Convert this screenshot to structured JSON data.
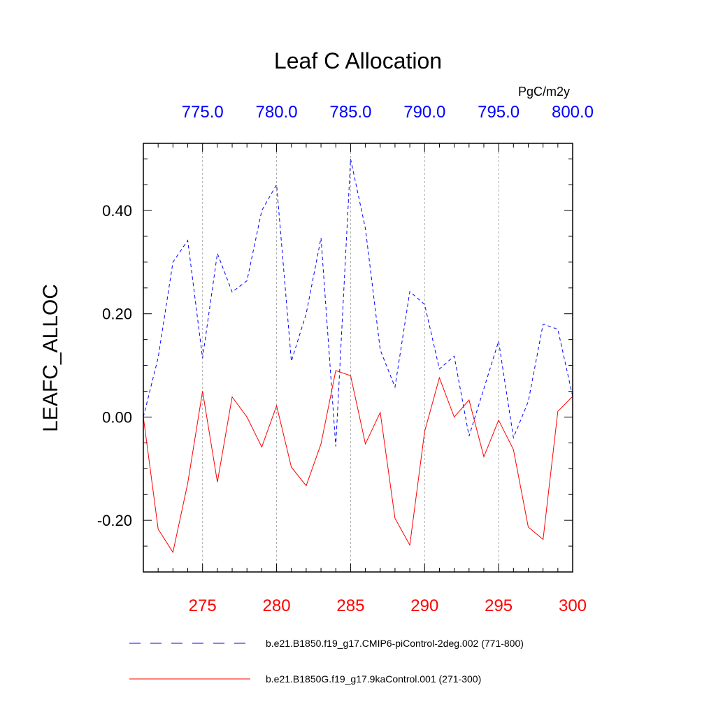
{
  "chart_data": {
    "type": "line",
    "title": "Leaf C Allocation",
    "ylabel": "LEAFC_ALLOC",
    "units": "PgC/m2y",
    "ylim": [
      -0.3,
      0.53
    ],
    "yticks": [
      -0.2,
      0.0,
      0.2,
      0.4
    ],
    "ytick_labels": [
      "-0.20",
      "0.00",
      "0.20",
      "0.40"
    ],
    "top_axis": {
      "range": [
        771,
        800
      ],
      "ticks": [
        775,
        780,
        785,
        790,
        795,
        800
      ],
      "tick_labels": [
        "775.0",
        "780.0",
        "785.0",
        "790.0",
        "795.0",
        "800.0"
      ],
      "color": "#0000ff"
    },
    "bottom_axis": {
      "range": [
        271,
        300
      ],
      "ticks": [
        275,
        280,
        285,
        290,
        295,
        300
      ],
      "tick_labels": [
        "275",
        "280",
        "285",
        "290",
        "295",
        "300"
      ],
      "color": "#ff0000"
    },
    "series": [
      {
        "name": "b.e21.B1850.f19_g17.CMIP6-piControl-2deg.002 (771-800)",
        "axis": "top",
        "color": "#0000ff",
        "style": "dashed",
        "x": [
          771,
          772,
          773,
          774,
          775,
          776,
          777,
          778,
          779,
          780,
          781,
          782,
          783,
          784,
          785,
          786,
          787,
          788,
          789,
          790,
          791,
          792,
          793,
          794,
          795,
          796,
          797,
          798,
          799,
          800
        ],
        "values": [
          0.0,
          0.115,
          0.3,
          0.342,
          0.114,
          0.317,
          0.242,
          0.264,
          0.4,
          0.45,
          0.108,
          0.2,
          0.347,
          -0.057,
          0.5,
          0.365,
          0.13,
          0.058,
          0.243,
          0.218,
          0.093,
          0.118,
          -0.037,
          0.055,
          0.147,
          -0.04,
          0.03,
          0.18,
          0.17,
          0.04
        ]
      },
      {
        "name": "b.e21.B1850G.f19_g17.9kaControl.001 (271-300)",
        "axis": "bottom",
        "color": "#ff0000",
        "style": "solid",
        "x": [
          271,
          272,
          273,
          274,
          275,
          276,
          277,
          278,
          279,
          280,
          281,
          282,
          283,
          284,
          285,
          286,
          287,
          288,
          289,
          290,
          291,
          292,
          293,
          294,
          295,
          296,
          297,
          298,
          299,
          300
        ],
        "values": [
          0.0,
          -0.217,
          -0.262,
          -0.128,
          0.05,
          -0.126,
          0.039,
          0.0,
          -0.058,
          0.022,
          -0.097,
          -0.133,
          -0.052,
          0.09,
          0.08,
          -0.052,
          0.009,
          -0.196,
          -0.248,
          -0.028,
          0.076,
          0.0,
          0.033,
          -0.077,
          -0.006,
          -0.063,
          -0.213,
          -0.237,
          0.011,
          0.04
        ]
      }
    ]
  }
}
